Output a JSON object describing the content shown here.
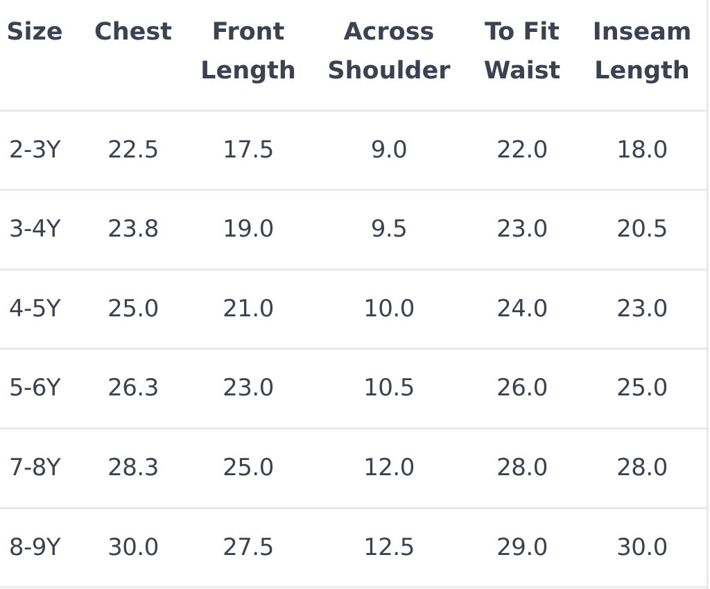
{
  "columns": [
    {
      "label": [
        "Size"
      ]
    },
    {
      "label": [
        "Chest"
      ]
    },
    {
      "label": [
        "Front",
        "Length"
      ]
    },
    {
      "label": [
        "Across",
        "Shoulder"
      ]
    },
    {
      "label": [
        "To Fit",
        "Waist"
      ]
    },
    {
      "label": [
        "Inseam",
        "Length"
      ]
    }
  ],
  "rows": [
    [
      "2-3Y",
      "22.5",
      "17.5",
      "9.0",
      "22.0",
      "18.0"
    ],
    [
      "3-4Y",
      "23.8",
      "19.0",
      "9.5",
      "23.0",
      "20.5"
    ],
    [
      "4-5Y",
      "25.0",
      "21.0",
      "10.0",
      "24.0",
      "23.0"
    ],
    [
      "5-6Y",
      "26.3",
      "23.0",
      "10.5",
      "26.0",
      "25.0"
    ],
    [
      "7-8Y",
      "28.3",
      "25.0",
      "12.0",
      "28.0",
      "28.0"
    ],
    [
      "8-9Y",
      "30.0",
      "27.5",
      "12.5",
      "29.0",
      "30.0"
    ]
  ],
  "colors": {
    "text": "#3e4152",
    "divider": "#e9e9eb"
  }
}
